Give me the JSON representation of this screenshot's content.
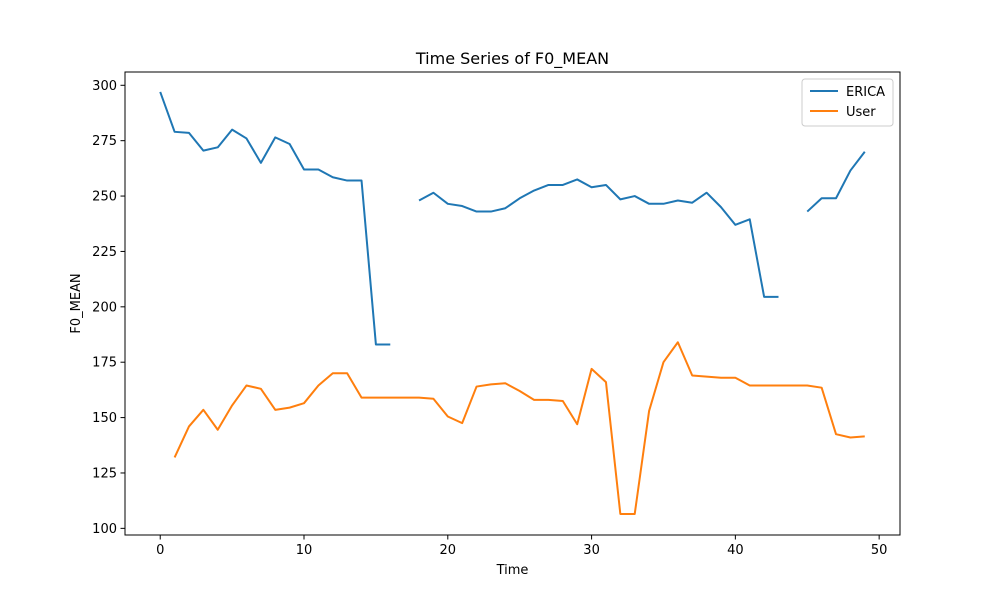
{
  "chart_data": {
    "type": "line",
    "title": "Time Series of F0_MEAN",
    "xlabel": "Time",
    "ylabel": "F0_MEAN",
    "xlim": [
      -2.45,
      51.45
    ],
    "ylim": [
      97,
      306
    ],
    "xticks": [
      0,
      10,
      20,
      30,
      40,
      50
    ],
    "yticks": [
      100,
      125,
      150,
      175,
      200,
      225,
      250,
      275,
      300
    ],
    "grid": false,
    "legend_position": "top-right",
    "series": [
      {
        "name": "ERICA",
        "color": "#1f77b4",
        "x": [
          0,
          1,
          2,
          3,
          4,
          5,
          6,
          7,
          8,
          9,
          10,
          11,
          12,
          13,
          14,
          15,
          16,
          17,
          18,
          19,
          20,
          21,
          22,
          23,
          24,
          25,
          26,
          27,
          28,
          29,
          30,
          31,
          32,
          33,
          34,
          35,
          36,
          37,
          38,
          39,
          40,
          41,
          42,
          43,
          44,
          45,
          46,
          47,
          48,
          49
        ],
        "y": [
          297,
          279,
          278.5,
          270.5,
          272,
          280,
          276,
          265,
          276.5,
          273.5,
          262,
          262,
          258.5,
          257,
          257,
          183,
          183,
          null,
          248,
          251.5,
          246.5,
          245.5,
          243,
          243,
          244.5,
          249,
          252.5,
          255,
          255,
          257.5,
          254,
          255,
          248.5,
          250,
          246.5,
          246.5,
          248,
          247,
          251.5,
          245,
          237,
          239.5,
          204.5,
          204.5,
          null,
          243,
          249,
          249,
          261.5,
          270
        ]
      },
      {
        "name": "User",
        "color": "#ff7f0e",
        "x": [
          0,
          1,
          2,
          3,
          4,
          5,
          6,
          7,
          8,
          9,
          10,
          11,
          12,
          13,
          14,
          15,
          16,
          17,
          18,
          19,
          20,
          21,
          22,
          23,
          24,
          25,
          26,
          27,
          28,
          29,
          30,
          31,
          32,
          33,
          34,
          35,
          36,
          37,
          38,
          39,
          40,
          41,
          42,
          43,
          44,
          45,
          46,
          47,
          48,
          49
        ],
        "y": [
          null,
          132,
          146,
          153.5,
          144.5,
          155.5,
          164.5,
          163,
          153.5,
          154.5,
          156.5,
          164.5,
          170,
          170,
          159,
          159,
          159,
          159,
          159,
          158.5,
          150.5,
          147.5,
          164,
          165,
          165.5,
          162,
          158,
          158,
          157.5,
          147,
          172,
          166,
          106.5,
          106.5,
          153,
          175,
          184,
          169,
          168.5,
          168,
          168,
          164.5,
          164.5,
          164.5,
          164.5,
          164.5,
          163.5,
          142.5,
          141,
          141.5
        ]
      }
    ]
  }
}
